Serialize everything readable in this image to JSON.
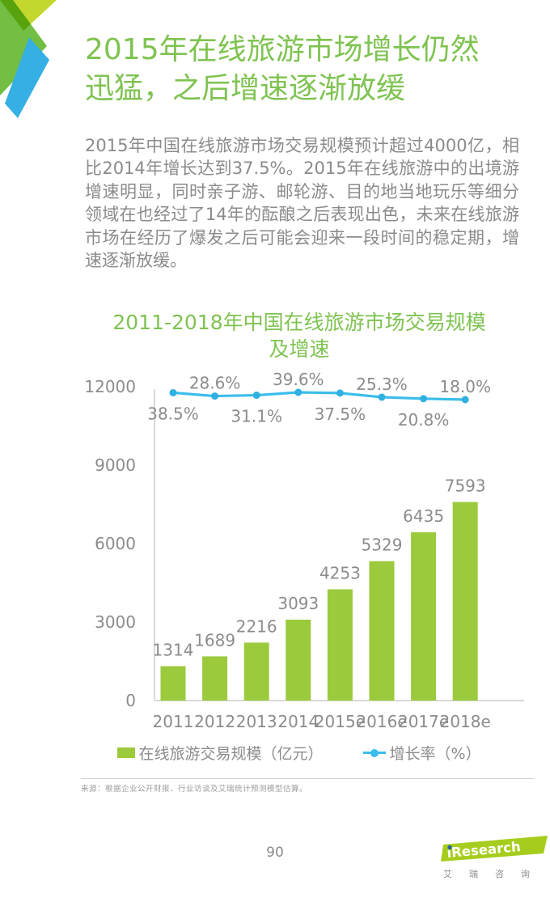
{
  "page": {
    "number": "90"
  },
  "colors": {
    "title_green": "#7FC351",
    "bar_green": "#9BCA3C",
    "line_blue": "#3BBDEB",
    "line_dot": "#2FB0E0",
    "body_gray": "#8B8B8B",
    "chart_label_gray": "#8C8C8C",
    "axis_gray": "#D9D9D9",
    "logo_green": "#A6CD1D",
    "logo_dot_blue": "#2B63A8",
    "decor_green": "#72BF44",
    "decor_lime": "#C3D82F",
    "decor_blue": "#35AFE4"
  },
  "header": {
    "title_lines": [
      "2015年在线旅游市场增长仍然",
      "迅猛，之后增速逐渐放缓"
    ]
  },
  "intro": {
    "text": "2015年中国在线旅游市场交易规模预计超过4000亿，相比2014年增长达到37.5%。2015年在线旅游中的出境游增速明显，同时亲子游、邮轮游、目的地当地玩乐等细分领域在也经过了14年的酝酿之后表现出色，未来在线旅游市场在经历了爆发之后可能会迎来一段时间的稳定期，增速逐渐放缓。"
  },
  "chart_data": {
    "type": "bar",
    "title": "2011-2018年中国在线旅游市场交易规模及增速",
    "title_lines": [
      "2011-2018年中国在线旅游市场交易规模",
      "及增速"
    ],
    "categories": [
      "2011",
      "2012",
      "2013",
      "2014",
      "2015e",
      "2016e",
      "2017e",
      "2018e"
    ],
    "series": [
      {
        "name": "在线旅游交易规模（亿元）",
        "type": "bar",
        "values": [
          1314,
          1689,
          2216,
          3093,
          4253,
          5329,
          6435,
          7593
        ]
      },
      {
        "name": "增长率（%）",
        "type": "line",
        "values": [
          38.5,
          28.6,
          31.1,
          39.6,
          37.5,
          25.3,
          20.8,
          18.0
        ],
        "labels": [
          "38.5%",
          "28.6%",
          "31.1%",
          "39.6%",
          "37.5%",
          "25.3%",
          "20.8%",
          "18.0%"
        ]
      }
    ],
    "y_ticks": [
      0,
      3000,
      6000,
      9000,
      12000
    ],
    "ylim": [
      0,
      12000
    ],
    "xlabel": "",
    "ylabel": "",
    "grid": false,
    "legend_position": "bottom"
  },
  "legend": {
    "bar_label": "在线旅游交易规模（亿元）",
    "line_label": "增长率（%）"
  },
  "source": {
    "text": "来源：根据企业公开财报、行业访谈及艾瑞统计预测模型估算。"
  },
  "footer": {
    "logo": {
      "brand": "iResearch",
      "chinese": "艾瑞咨询"
    }
  }
}
